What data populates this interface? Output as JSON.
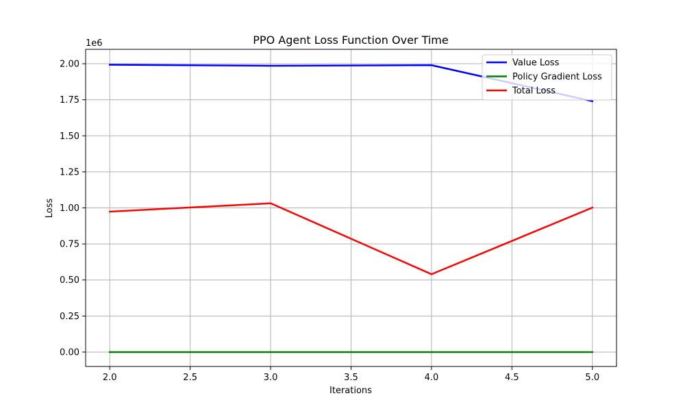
{
  "chart_data": {
    "type": "line",
    "title": "PPO Agent Loss Function Over Time",
    "xlabel": "Iterations",
    "ylabel": "Loss",
    "y_offset_text": "1e6",
    "x": [
      2,
      3,
      4,
      5
    ],
    "xlim": [
      1.85,
      5.15
    ],
    "ylim": [
      -100000,
      2100000
    ],
    "x_ticks": [
      2.0,
      2.5,
      3.0,
      3.5,
      4.0,
      4.5,
      5.0
    ],
    "x_tick_labels": [
      "2.0",
      "2.5",
      "3.0",
      "3.5",
      "4.0",
      "4.5",
      "5.0"
    ],
    "y_ticks": [
      0,
      250000,
      500000,
      750000,
      1000000,
      1250000,
      1500000,
      1750000,
      2000000
    ],
    "y_tick_labels": [
      "0.00",
      "0.25",
      "0.50",
      "0.75",
      "1.00",
      "1.25",
      "1.50",
      "1.75",
      "2.00"
    ],
    "grid": true,
    "legend_position": "top-right",
    "series": [
      {
        "name": "Value Loss",
        "color": "#0000ff",
        "values": [
          1993000,
          1986000,
          1990000,
          1740000
        ]
      },
      {
        "name": "Policy Gradient Loss",
        "color": "#008000",
        "values": [
          0,
          0,
          0,
          0
        ]
      },
      {
        "name": "Total Loss",
        "color": "#ff0000",
        "values": [
          974000,
          1032000,
          540000,
          1002000
        ]
      }
    ]
  }
}
